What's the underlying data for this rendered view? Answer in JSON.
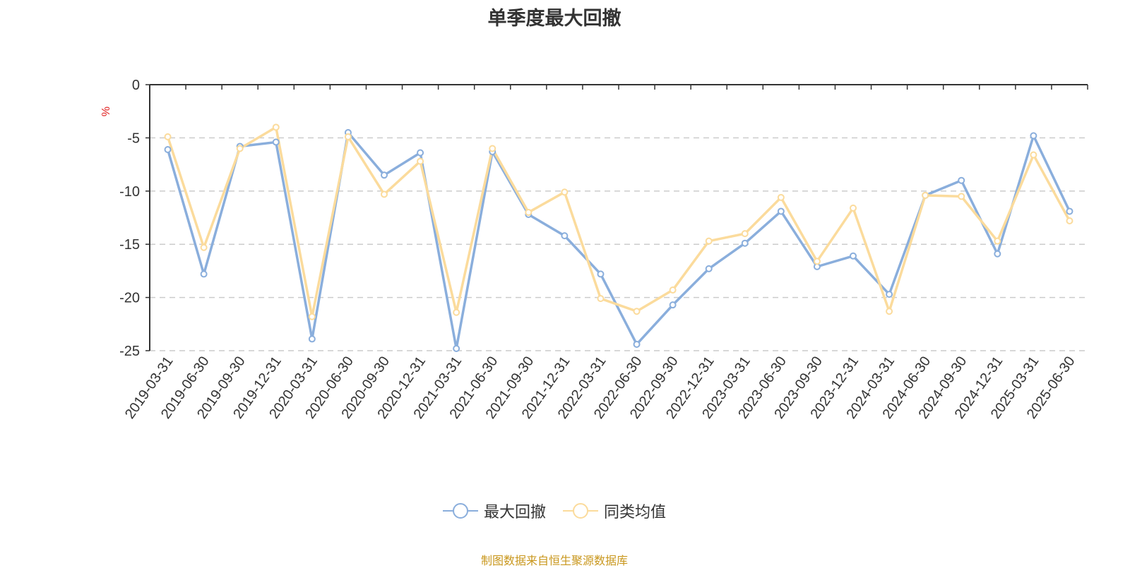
{
  "chart_data": {
    "type": "line",
    "title": "单季度最大回撤",
    "ylabel": "%",
    "ylim": [
      -25,
      0
    ],
    "yticks": [
      0,
      -5,
      -10,
      -15,
      -20,
      -25
    ],
    "grid": true,
    "legend_position": "bottom",
    "categories": [
      "2019-03-31",
      "2019-06-30",
      "2019-09-30",
      "2019-12-31",
      "2020-03-31",
      "2020-06-30",
      "2020-09-30",
      "2020-12-31",
      "2021-03-31",
      "2021-06-30",
      "2021-09-30",
      "2021-12-31",
      "2022-03-31",
      "2022-06-30",
      "2022-09-30",
      "2022-12-31",
      "2023-03-31",
      "2023-06-30",
      "2023-09-30",
      "2023-12-31",
      "2024-03-31",
      "2024-06-30",
      "2024-09-30",
      "2024-12-31",
      "2025-03-31",
      "2025-06-30"
    ],
    "series": [
      {
        "name": "最大回撤",
        "color": "#8aaedc",
        "values": [
          -6.1,
          -17.8,
          -5.8,
          -5.4,
          -23.9,
          -4.5,
          -8.5,
          -6.4,
          -24.8,
          -6.3,
          -12.2,
          -14.2,
          -17.8,
          -24.4,
          -20.7,
          -17.3,
          -14.9,
          -11.9,
          -17.1,
          -16.1,
          -19.7,
          -10.4,
          -9.0,
          -15.9,
          -4.8,
          -11.9
        ]
      },
      {
        "name": "同类均值",
        "color": "#fbdb9c",
        "values": [
          -4.9,
          -15.3,
          -6.0,
          -4.0,
          -21.8,
          -4.9,
          -10.3,
          -7.2,
          -21.4,
          -6.0,
          -12.0,
          -10.1,
          -20.1,
          -21.3,
          -19.3,
          -14.7,
          -14.0,
          -10.6,
          -16.6,
          -11.6,
          -21.3,
          -10.4,
          -10.5,
          -14.7,
          -6.6,
          -12.8
        ]
      }
    ]
  },
  "footer": {
    "source_text": "制图数据来自恒生聚源数据库",
    "source_color": "#c9971d"
  }
}
